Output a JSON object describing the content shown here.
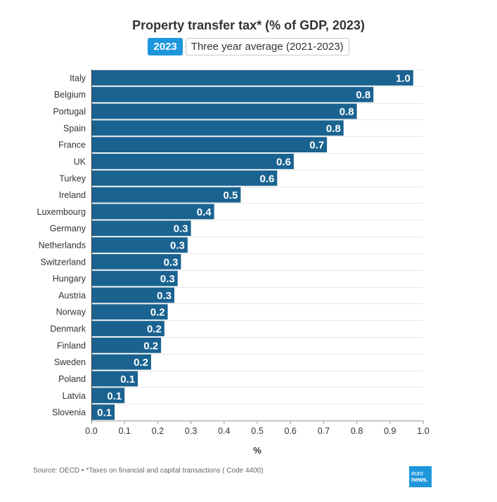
{
  "header": {
    "title": "Property transfer tax* (% of GDP, 2023)",
    "tabs": [
      {
        "label": "2023",
        "active": true
      },
      {
        "label": "Three year average (2021-2023)",
        "active": false
      }
    ]
  },
  "chart_data": {
    "type": "bar",
    "orientation": "horizontal",
    "title": "Property transfer tax* (% of GDP, 2023)",
    "xlabel": "%",
    "ylabel": "",
    "xlim": [
      0,
      1.0
    ],
    "xticks": [
      "0.0",
      "0.1",
      "0.2",
      "0.3",
      "0.4",
      "0.5",
      "0.6",
      "0.7",
      "0.8",
      "0.9",
      "1.0"
    ],
    "grid": true,
    "bar_color": "#1a6391",
    "categories": [
      "Italy",
      "Belgium",
      "Portugal",
      "Spain",
      "France",
      "UK",
      "Turkey",
      "Ireland",
      "Luxembourg",
      "Germany",
      "Netherlands",
      "Switzerland",
      "Hungary",
      "Austria",
      "Norway",
      "Denmark",
      "Finland",
      "Sweden",
      "Poland",
      "Latvia",
      "Slovenia"
    ],
    "values": [
      0.97,
      0.85,
      0.8,
      0.76,
      0.71,
      0.61,
      0.56,
      0.45,
      0.37,
      0.3,
      0.29,
      0.27,
      0.26,
      0.25,
      0.23,
      0.22,
      0.21,
      0.18,
      0.14,
      0.1,
      0.07
    ],
    "labels": [
      "1.0",
      "0.8",
      "0.8",
      "0.8",
      "0.7",
      "0.6",
      "0.6",
      "0.5",
      "0.4",
      "0.3",
      "0.3",
      "0.3",
      "0.3",
      "0.3",
      "0.2",
      "0.2",
      "0.2",
      "0.2",
      "0.1",
      "0.1",
      "0.1"
    ]
  },
  "footer": {
    "source": "Source: OECD • *Taxes on financial and capital transactions ( Code 4400)",
    "logo_line1": "euro",
    "logo_line2": "news."
  },
  "colors": {
    "accent": "#1e96dc",
    "bar": "#1a6391"
  }
}
